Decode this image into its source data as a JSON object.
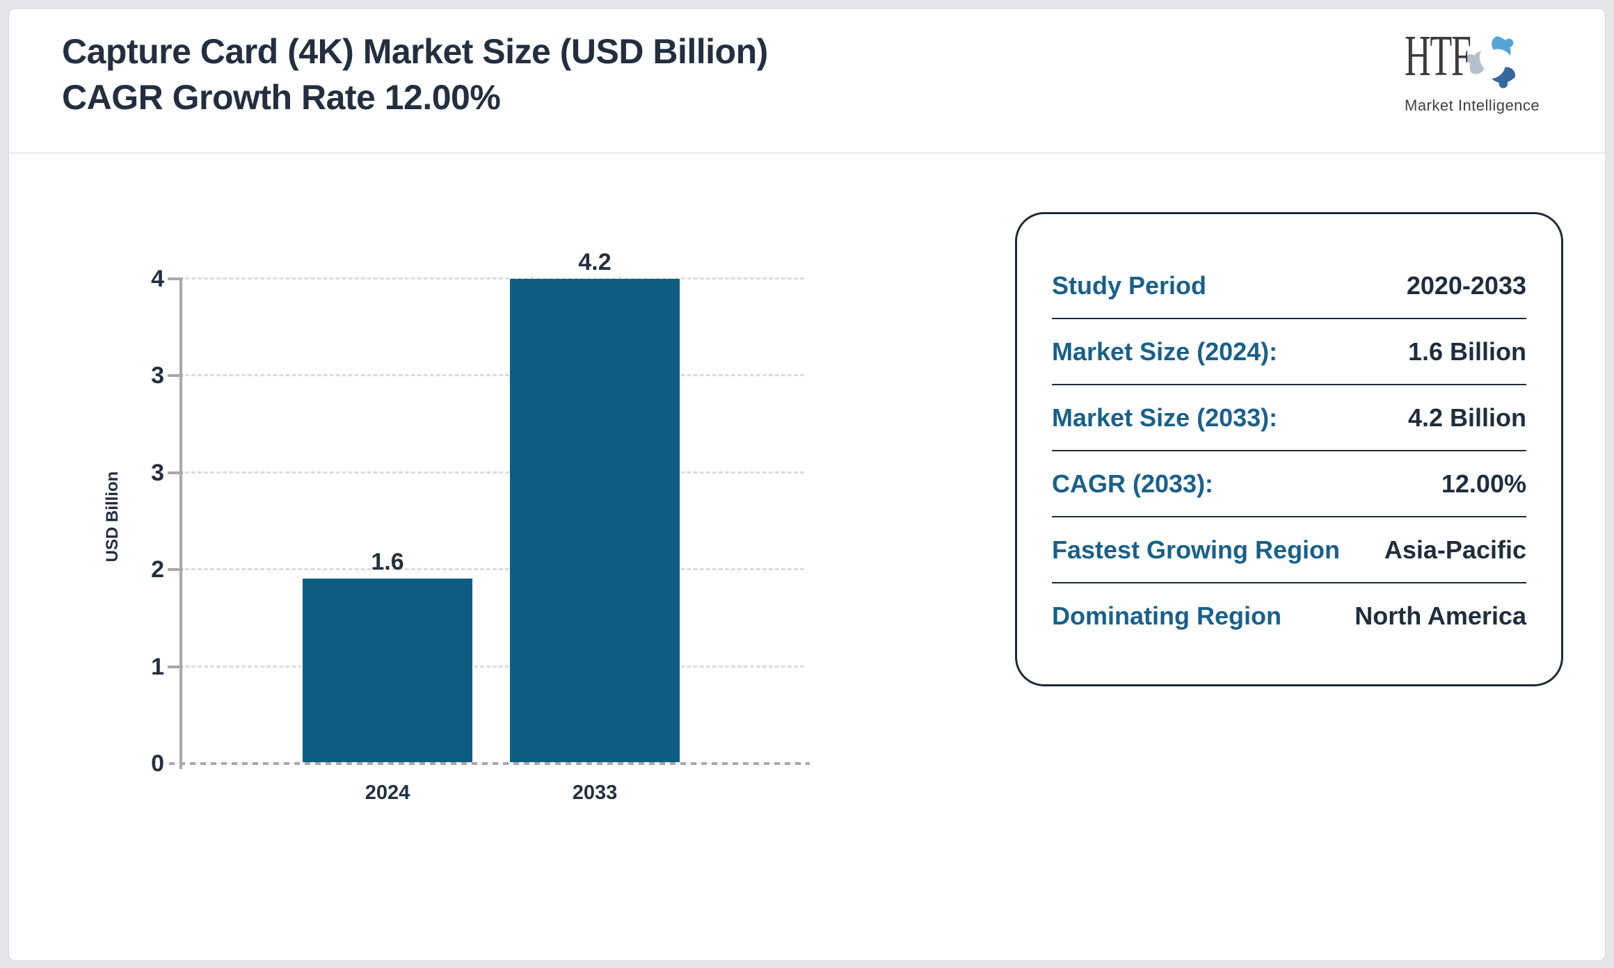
{
  "header": {
    "title_line1": "Capture Card (4K) Market Size (USD Billion)",
    "title_line2": "CAGR Growth Rate 12.00%"
  },
  "logo": {
    "text": "HTF",
    "tagline": "Market Intelligence",
    "icon_colors": {
      "top": "#56a4d3",
      "right": "#33689b",
      "left": "#b6c0ca"
    }
  },
  "chart_data": {
    "type": "bar",
    "title": "Capture Card (4K) Market Size (USD Billion) CAGR Growth Rate 12.00%",
    "categories": [
      "2024",
      "2033"
    ],
    "values": [
      1.6,
      4.2
    ],
    "bar_value_labels": [
      "1.6",
      "4.2"
    ],
    "xlabel": "",
    "ylabel": "USD Billion",
    "ylim": [
      0,
      4.2
    ],
    "ytick_values": [
      0,
      0.84,
      1.68,
      2.52,
      3.36,
      4.2
    ],
    "ytick_labels": [
      "0",
      "1",
      "2",
      "3",
      "3",
      "4"
    ],
    "bar_color": "#0e5d81",
    "grid": "horizontal-dashed",
    "legend": "none"
  },
  "panel": {
    "rows": [
      {
        "label": "Study Period",
        "value": "2020-2033"
      },
      {
        "label": "Market Size (2024):",
        "value": "1.6 Billion"
      },
      {
        "label": "Market Size (2033):",
        "value": "4.2 Billion"
      },
      {
        "label": "CAGR (2033):",
        "value": "12.00%"
      },
      {
        "label": "Fastest Growing Region",
        "value": "Asia-Pacific"
      },
      {
        "label": "Dominating Region",
        "value": "North America"
      }
    ]
  }
}
